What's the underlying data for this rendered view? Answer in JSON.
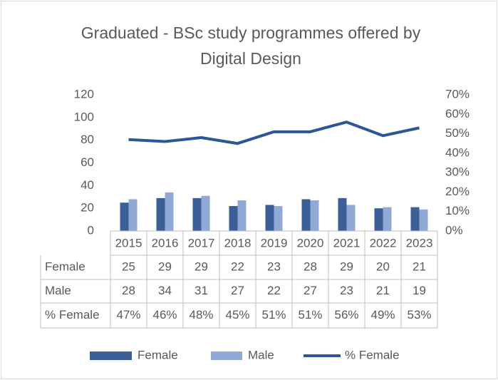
{
  "chart_data": {
    "type": "bar-line",
    "title": "Graduated - BSc study programmes offered by Digital Design",
    "categories": [
      "2015",
      "2016",
      "2017",
      "2018",
      "2019",
      "2020",
      "2021",
      "2022",
      "2023"
    ],
    "series": [
      {
        "name": "Female",
        "type": "bar",
        "color": "#3b5f96",
        "values": [
          25,
          29,
          29,
          22,
          23,
          28,
          29,
          20,
          21
        ]
      },
      {
        "name": "Male",
        "type": "bar",
        "color": "#91a9d5",
        "values": [
          28,
          34,
          31,
          27,
          22,
          27,
          23,
          21,
          19
        ]
      },
      {
        "name": "% Female",
        "type": "line",
        "axis": "y2",
        "color": "#2e5597",
        "values": [
          47,
          46,
          48,
          45,
          51,
          51,
          56,
          49,
          53
        ],
        "value_labels": [
          "47%",
          "46%",
          "48%",
          "45%",
          "51%",
          "51%",
          "56%",
          "49%",
          "53%"
        ]
      }
    ],
    "ylim": [
      0,
      120
    ],
    "yticks": [
      0,
      20,
      40,
      60,
      80,
      100,
      120
    ],
    "y2lim": [
      0,
      70
    ],
    "y2ticks": [
      {
        "value": 0,
        "label": "0%"
      },
      {
        "value": 10,
        "label": "10%"
      },
      {
        "value": 20,
        "label": "20%"
      },
      {
        "value": 30,
        "label": "30%"
      },
      {
        "value": 40,
        "label": "40%"
      },
      {
        "value": 50,
        "label": "50%"
      },
      {
        "value": 60,
        "label": "60%"
      },
      {
        "value": 70,
        "label": "70%"
      }
    ],
    "grid": false,
    "data_table": true,
    "legend": "bottom"
  }
}
